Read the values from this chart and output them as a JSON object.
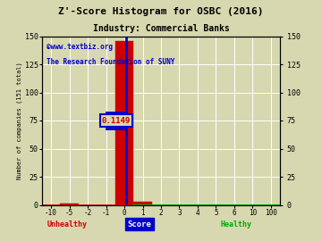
{
  "title": "Z'-Score Histogram for OSBC (2016)",
  "subtitle": "Industry: Commercial Banks",
  "xlabel_score": "Score",
  "xlabel_unhealthy": "Unhealthy",
  "xlabel_healthy": "Healthy",
  "ylabel_left": "Number of companies (151 total)",
  "watermark1": "©www.textbiz.org",
  "watermark2": "The Research Foundation of SUNY",
  "background_color": "#d8d8b0",
  "grid_color": "#ffffff",
  "bar_color": "#cc0000",
  "highlight_bar_color": "#0000cc",
  "x_tick_labels": [
    "-10",
    "-5",
    "-2",
    "-1",
    "0",
    "1",
    "2",
    "3",
    "4",
    "5",
    "6",
    "10",
    "100"
  ],
  "ylim": [
    0,
    150
  ],
  "y_ticks_left": [
    0,
    25,
    50,
    75,
    100,
    125,
    150
  ],
  "annotation_text": "0.1149",
  "annotation_x_label": "0",
  "hist_data": {
    "-10": 0,
    "-5": 0,
    "-2": 0,
    "-1": 0,
    "-0.5_bar": 1,
    "0_bar": 146,
    "0.5_bar": 3,
    "1": 0,
    "2": 0,
    "3": 0,
    "4": 0,
    "5": 0,
    "6": 0
  },
  "bar_heights": [
    0,
    0,
    0,
    0,
    1,
    146,
    3,
    0,
    0,
    0,
    0,
    0,
    0
  ],
  "unhealthy_color": "#cc0000",
  "healthy_color": "#00aa00",
  "score_label_bg": "#0000cc",
  "score_label_fg": "#ffffff",
  "title_color": "#000000",
  "watermark_color": "#0000cc",
  "green_line_color": "#00aa00",
  "red_line_color": "#cc0000"
}
